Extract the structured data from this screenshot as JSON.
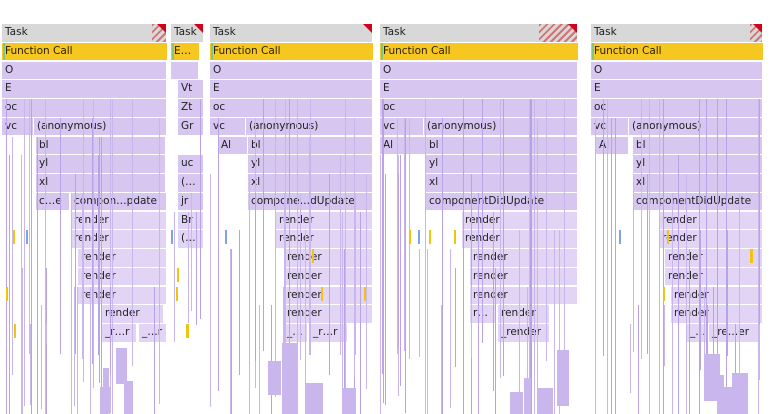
{
  "task_label": "Task",
  "function_call_label": "Function Call",
  "columns": [
    {
      "id": "1",
      "rows": [
        [
          "O"
        ],
        [
          "E"
        ],
        [
          "oc"
        ],
        [
          "vc",
          "(anonymous)"
        ],
        [
          "bl"
        ],
        [
          "yl"
        ],
        [
          "xl"
        ],
        [
          "c…e",
          "compon…pdate"
        ],
        [
          "render"
        ],
        [
          "render"
        ],
        [
          "render"
        ],
        [
          "render"
        ],
        [
          "render"
        ],
        [
          "render"
        ],
        [
          "_r…r",
          "_…r"
        ]
      ]
    },
    {
      "id": "2",
      "task_fn_label": "E…",
      "rows": [
        [
          ""
        ],
        [
          "Vt"
        ],
        [
          "Zt"
        ],
        [
          "Gr"
        ],
        [
          ""
        ],
        [
          "uc"
        ],
        [
          "(…"
        ],
        [
          "jr"
        ],
        [
          "Br"
        ],
        [
          "(…"
        ]
      ]
    },
    {
      "id": "3",
      "rows": [
        [
          "O"
        ],
        [
          "E"
        ],
        [
          "oc"
        ],
        [
          "vc",
          "(anonymous)"
        ],
        [
          "Al",
          "bl"
        ],
        [
          "yl"
        ],
        [
          "xl"
        ],
        [
          "compone…dUpdate"
        ],
        [
          "render"
        ],
        [
          "render"
        ],
        [
          "render"
        ],
        [
          "render"
        ],
        [
          "render"
        ],
        [
          "render"
        ],
        [
          "_…",
          "_r…r"
        ]
      ]
    },
    {
      "id": "4",
      "rows": [
        [
          "O"
        ],
        [
          "E"
        ],
        [
          "oc"
        ],
        [
          "vc",
          "(anonymous)"
        ],
        [
          "Al",
          "bl"
        ],
        [
          "yl"
        ],
        [
          "xl"
        ],
        [
          "componentDidUpdate"
        ],
        [
          "render"
        ],
        [
          "render"
        ],
        [
          "render"
        ],
        [
          "render"
        ],
        [
          "render"
        ],
        [
          "r…",
          "render"
        ],
        [
          "_render"
        ]
      ]
    },
    {
      "id": "5",
      "rows": [
        [
          "O"
        ],
        [
          "E"
        ],
        [
          "oc"
        ],
        [
          "vc",
          "(anonymous)"
        ],
        [
          "Al",
          "bl"
        ],
        [
          "yl"
        ],
        [
          "xl"
        ],
        [
          "componentDidUpdate"
        ],
        [
          "render"
        ],
        [
          "render"
        ],
        [
          "render"
        ],
        [
          "render"
        ],
        [
          "render"
        ],
        [
          "render"
        ],
        [
          "_…",
          "_re…er"
        ]
      ]
    }
  ]
}
